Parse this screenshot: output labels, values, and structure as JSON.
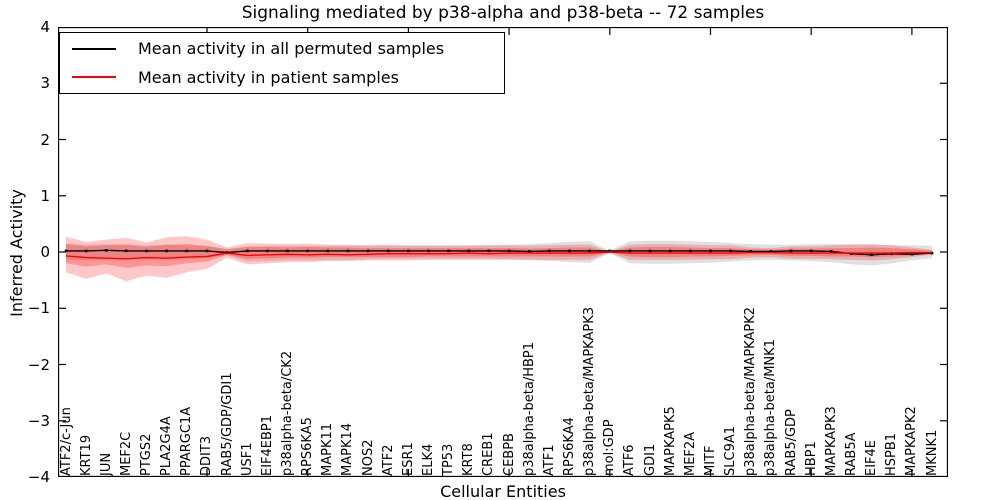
{
  "title": "Signaling mediated by p38-alpha and p38-beta -- 72 samples",
  "axes": {
    "y_label": "Inferred Activity",
    "x_label": "Cellular Entities",
    "y_ticks": [
      "4",
      "3",
      "2",
      "1",
      "0",
      "−1",
      "−2",
      "−3",
      "−4"
    ],
    "y_range": [
      -4,
      4
    ]
  },
  "legend": {
    "items": [
      {
        "label": "Mean activity in all permuted samples",
        "color": "#000000"
      },
      {
        "label": "Mean activity in patient samples",
        "color": "#ff0000"
      }
    ]
  },
  "colors": {
    "permuted_line": "#000000",
    "patient_line": "#ff0000",
    "permuted_band": "rgba(0,0,0,0.12)",
    "patient_band_outer": "rgba(255,0,0,0.22)",
    "patient_band_inner": "rgba(255,0,0,0.25)",
    "frame": "#000000"
  },
  "chart_data": {
    "type": "line",
    "title": "Signaling mediated by p38-alpha and p38-beta -- 72 samples",
    "xlabel": "Cellular Entities",
    "ylabel": "Inferred Activity",
    "ylim": [
      -4,
      4
    ],
    "grid": false,
    "legend_position": "upper left",
    "categories": [
      "ATF2/c-Jun",
      "KRT19",
      "JUN",
      "MEF2C",
      "PTGS2",
      "PLA2G4A",
      "PPARGC1A",
      "DDIT3",
      "RAB5/GDP/GDI1",
      "USF1",
      "EIF4EBP1",
      "p38alpha-beta/CK2",
      "RPS6KA5",
      "MAPK11",
      "MAPK14",
      "NOS2",
      "ATF2",
      "ESR1",
      "ELK4",
      "TP53",
      "KRT8",
      "CREB1",
      "CEBPB",
      "p38alpha-beta/HBP1",
      "ATF1",
      "RPS6KA4",
      "p38alpha-beta/MAPKAPK3",
      "mol:GDP",
      "ATF6",
      "GDI1",
      "MAPKAPK5",
      "MEF2A",
      "MITF",
      "SLC9A1",
      "p38alpha-beta/MAPKAPK2",
      "p38alpha-beta/MNK1",
      "RAB5/GDP",
      "HBP1",
      "MAPKAPK3",
      "RAB5A",
      "EIF4E",
      "HSPB1",
      "MAPKAPK2",
      "MKNK1"
    ],
    "series": [
      {
        "name": "Mean activity in all permuted samples",
        "color": "#000000",
        "marker": "square",
        "values": [
          0.02,
          0.02,
          0.03,
          0.02,
          0.02,
          0.02,
          0.02,
          0.02,
          -0.01,
          0.02,
          0.02,
          0.02,
          0.02,
          0.02,
          0.02,
          0.02,
          0.02,
          0.02,
          0.02,
          0.02,
          0.02,
          0.02,
          0.02,
          0.01,
          0.02,
          0.02,
          0.02,
          0.02,
          0.02,
          0.02,
          0.02,
          0.02,
          0.02,
          0.02,
          0.01,
          0.01,
          0.02,
          0.02,
          0.01,
          -0.03,
          -0.05,
          -0.03,
          -0.04,
          -0.02
        ]
      },
      {
        "name": "Mean activity in patient samples",
        "color": "#ff0000",
        "marker": "none",
        "values": [
          -0.07,
          -0.1,
          -0.11,
          -0.12,
          -0.1,
          -0.11,
          -0.09,
          -0.08,
          -0.02,
          -0.06,
          -0.05,
          -0.04,
          -0.05,
          -0.04,
          -0.05,
          -0.04,
          -0.03,
          -0.03,
          -0.03,
          -0.03,
          -0.02,
          -0.03,
          -0.02,
          -0.02,
          -0.02,
          -0.02,
          -0.02,
          0.0,
          -0.02,
          -0.02,
          -0.02,
          -0.02,
          -0.02,
          -0.02,
          -0.01,
          -0.01,
          -0.02,
          -0.02,
          -0.02,
          -0.02,
          -0.02,
          -0.02,
          -0.01,
          -0.01
        ]
      }
    ],
    "bands": [
      {
        "name": "permuted-samples-std-band",
        "color": "rgba(0,0,0,0.12)",
        "upper": [
          0.15,
          0.13,
          0.14,
          0.13,
          0.12,
          0.13,
          0.12,
          0.1,
          0.06,
          0.1,
          0.11,
          0.11,
          0.11,
          0.11,
          0.11,
          0.11,
          0.11,
          0.11,
          0.11,
          0.11,
          0.11,
          0.12,
          0.13,
          0.14,
          0.16,
          0.18,
          0.19,
          0.02,
          0.19,
          0.2,
          0.2,
          0.19,
          0.18,
          0.16,
          0.14,
          0.13,
          0.13,
          0.14,
          0.14,
          0.14,
          0.13,
          0.12,
          0.12,
          0.11
        ],
        "lower": [
          -0.15,
          -0.14,
          -0.14,
          -0.13,
          -0.13,
          -0.13,
          -0.12,
          -0.1,
          -0.06,
          -0.17,
          -0.16,
          -0.15,
          -0.15,
          -0.14,
          -0.14,
          -0.13,
          -0.12,
          -0.12,
          -0.12,
          -0.12,
          -0.12,
          -0.12,
          -0.13,
          -0.14,
          -0.16,
          -0.18,
          -0.19,
          -0.02,
          -0.2,
          -0.21,
          -0.21,
          -0.2,
          -0.19,
          -0.17,
          -0.15,
          -0.14,
          -0.15,
          -0.16,
          -0.18,
          -0.22,
          -0.24,
          -0.2,
          -0.15,
          -0.11
        ]
      },
      {
        "name": "patient-samples-outer-band",
        "color": "rgba(255,0,0,0.22)",
        "upper": [
          0.27,
          0.18,
          0.22,
          0.25,
          0.17,
          0.26,
          0.28,
          0.22,
          0.08,
          0.16,
          0.15,
          0.14,
          0.15,
          0.13,
          0.13,
          0.12,
          0.13,
          0.12,
          0.12,
          0.12,
          0.12,
          0.12,
          0.12,
          0.11,
          0.12,
          0.13,
          0.13,
          0.015,
          0.13,
          0.14,
          0.14,
          0.13,
          0.12,
          0.12,
          0.08,
          0.07,
          0.1,
          0.1,
          0.12,
          0.13,
          0.14,
          0.12,
          0.08,
          0.04
        ],
        "lower": [
          -0.36,
          -0.48,
          -0.38,
          -0.52,
          -0.42,
          -0.46,
          -0.36,
          -0.3,
          -0.1,
          -0.22,
          -0.2,
          -0.18,
          -0.18,
          -0.16,
          -0.16,
          -0.15,
          -0.15,
          -0.15,
          -0.14,
          -0.14,
          -0.14,
          -0.14,
          -0.14,
          -0.14,
          -0.14,
          -0.14,
          -0.14,
          -0.015,
          -0.14,
          -0.14,
          -0.14,
          -0.14,
          -0.13,
          -0.13,
          -0.1,
          -0.09,
          -0.12,
          -0.12,
          -0.13,
          -0.14,
          -0.15,
          -0.13,
          -0.09,
          -0.05
        ]
      },
      {
        "name": "patient-samples-inner-band",
        "color": "rgba(255,0,0,0.25)",
        "upper": [
          0.14,
          0.1,
          0.12,
          0.13,
          0.09,
          0.13,
          0.14,
          0.11,
          0.04,
          0.09,
          0.09,
          0.08,
          0.09,
          0.08,
          0.08,
          0.07,
          0.07,
          0.07,
          0.07,
          0.07,
          0.07,
          0.07,
          0.07,
          0.06,
          0.07,
          0.08,
          0.08,
          0.008,
          0.08,
          0.09,
          0.09,
          0.08,
          0.07,
          0.07,
          0.05,
          0.04,
          0.06,
          0.06,
          0.07,
          0.07,
          0.08,
          0.07,
          0.05,
          0.02
        ],
        "lower": [
          -0.2,
          -0.26,
          -0.22,
          -0.28,
          -0.24,
          -0.25,
          -0.2,
          -0.17,
          -0.05,
          -0.12,
          -0.11,
          -0.1,
          -0.1,
          -0.09,
          -0.09,
          -0.09,
          -0.09,
          -0.09,
          -0.08,
          -0.08,
          -0.08,
          -0.08,
          -0.08,
          -0.08,
          -0.08,
          -0.08,
          -0.08,
          -0.008,
          -0.08,
          -0.09,
          -0.09,
          -0.08,
          -0.08,
          -0.07,
          -0.06,
          -0.05,
          -0.07,
          -0.07,
          -0.08,
          -0.08,
          -0.09,
          -0.08,
          -0.06,
          -0.03
        ]
      }
    ],
    "x_major_tick_indices": [
      7,
      12,
      17,
      22,
      27,
      32,
      37,
      42
    ]
  }
}
